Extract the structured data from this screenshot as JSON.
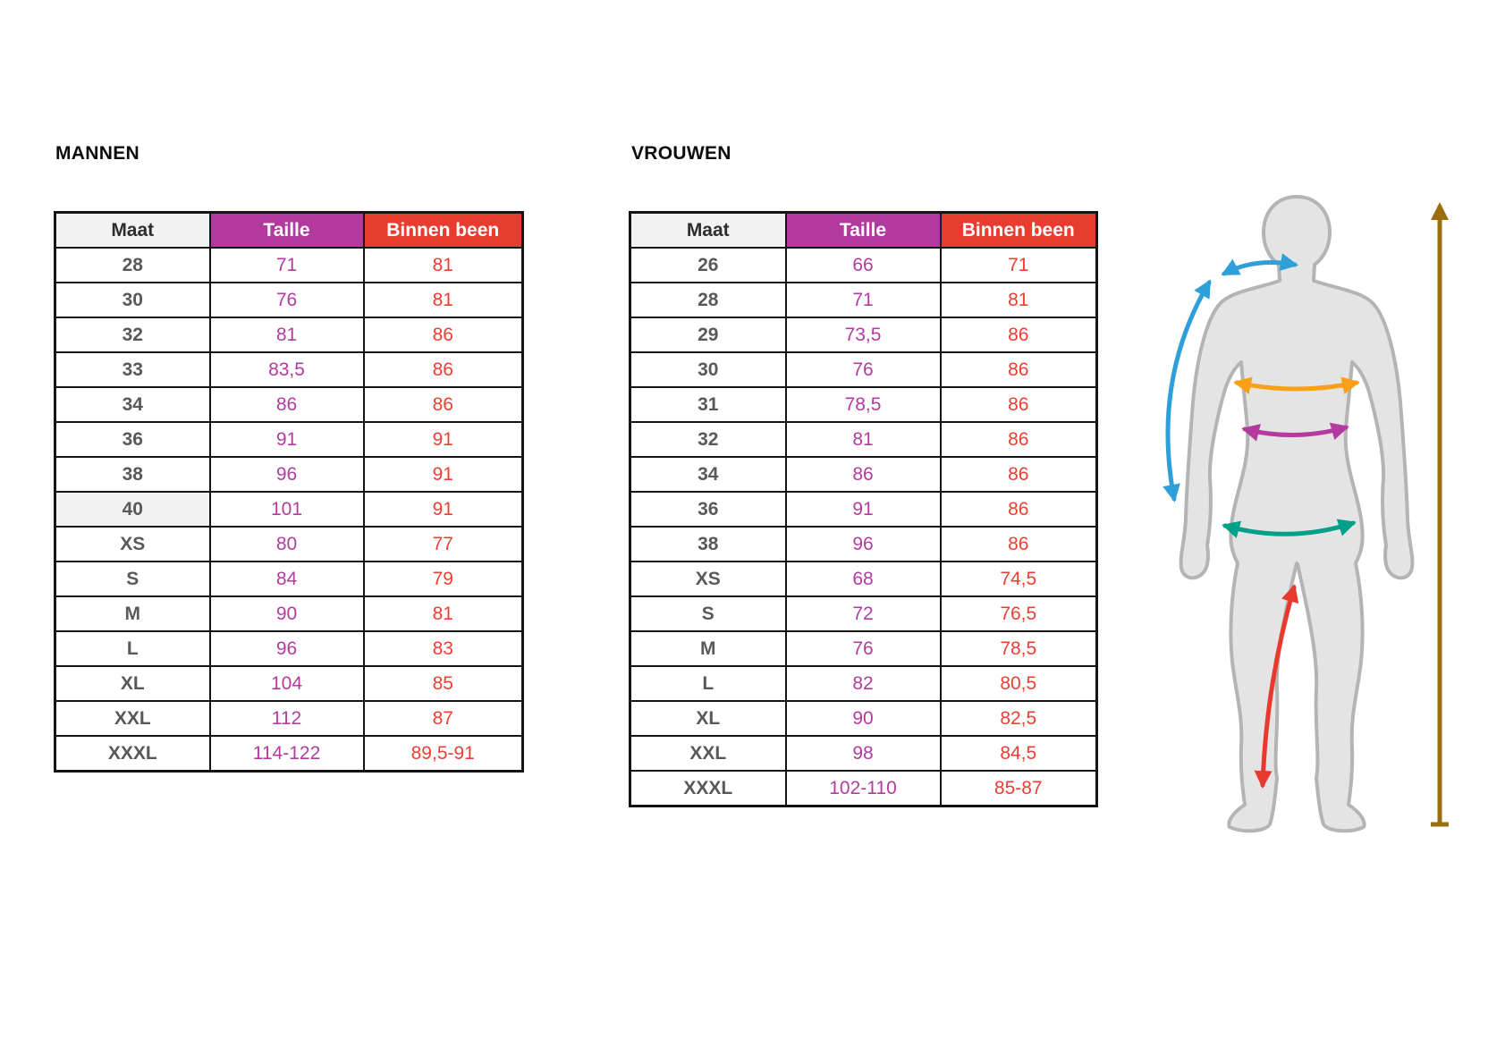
{
  "page": {
    "background": "#ffffff"
  },
  "theme": {
    "border_color": "#141414",
    "highlight_bg": "#f2f2f2"
  },
  "tables": [
    {
      "id": "men",
      "title": "MANNEN",
      "columns": [
        {
          "key": "maat",
          "label": "Maat",
          "header_bg": "#f2f2f2",
          "header_text": "#2d2d2d",
          "cell_color": "#59595b"
        },
        {
          "key": "taille",
          "label": "Taille",
          "header_bg": "#b23a9e",
          "header_text": "#ffffff",
          "cell_color": "#b53aa0"
        },
        {
          "key": "binnen-been",
          "label": "Binnen been",
          "header_bg": "#e93c30",
          "header_text": "#ffffff",
          "cell_color": "#ee3e33"
        }
      ],
      "rows": [
        {
          "cells": [
            "28",
            "71",
            "81"
          ]
        },
        {
          "cells": [
            "30",
            "76",
            "81"
          ]
        },
        {
          "cells": [
            "32",
            "81",
            "86"
          ]
        },
        {
          "cells": [
            "33",
            "83,5",
            "86"
          ]
        },
        {
          "cells": [
            "34",
            "86",
            "86"
          ]
        },
        {
          "cells": [
            "36",
            "91",
            "91"
          ]
        },
        {
          "cells": [
            "38",
            "96",
            "91"
          ]
        },
        {
          "cells": [
            "40",
            "101",
            "91"
          ],
          "highlight_first": true
        },
        {
          "cells": [
            "XS",
            "80",
            "77"
          ]
        },
        {
          "cells": [
            "S",
            "84",
            "79"
          ]
        },
        {
          "cells": [
            "M",
            "90",
            "81"
          ]
        },
        {
          "cells": [
            "L",
            "96",
            "83"
          ]
        },
        {
          "cells": [
            "XL",
            "104",
            "85"
          ]
        },
        {
          "cells": [
            "XXL",
            "112",
            "87"
          ]
        },
        {
          "cells": [
            "XXXL",
            "114-122",
            "89,5-91"
          ]
        }
      ]
    },
    {
      "id": "women",
      "title": "VROUWEN",
      "columns": [
        {
          "key": "maat",
          "label": "Maat",
          "header_bg": "#f2f2f2",
          "header_text": "#2d2d2d",
          "cell_color": "#59595b"
        },
        {
          "key": "taille",
          "label": "Taille",
          "header_bg": "#b23a9e",
          "header_text": "#ffffff",
          "cell_color": "#b53aa0"
        },
        {
          "key": "binnen-been",
          "label": "Binnen been",
          "header_bg": "#e93c30",
          "header_text": "#ffffff",
          "cell_color": "#ee3e33"
        }
      ],
      "rows": [
        {
          "cells": [
            "26",
            "66",
            "71"
          ]
        },
        {
          "cells": [
            "28",
            "71",
            "81"
          ]
        },
        {
          "cells": [
            "29",
            "73,5",
            "86"
          ]
        },
        {
          "cells": [
            "30",
            "76",
            "86"
          ]
        },
        {
          "cells": [
            "31",
            "78,5",
            "86"
          ]
        },
        {
          "cells": [
            "32",
            "81",
            "86"
          ]
        },
        {
          "cells": [
            "34",
            "86",
            "86"
          ]
        },
        {
          "cells": [
            "36",
            "91",
            "86"
          ]
        },
        {
          "cells": [
            "38",
            "96",
            "86"
          ]
        },
        {
          "cells": [
            "XS",
            "68",
            "74,5"
          ]
        },
        {
          "cells": [
            "S",
            "72",
            "76,5"
          ]
        },
        {
          "cells": [
            "M",
            "76",
            "78,5"
          ]
        },
        {
          "cells": [
            "L",
            "82",
            "80,5"
          ]
        },
        {
          "cells": [
            "XL",
            "90",
            "82,5"
          ]
        },
        {
          "cells": [
            "XXL",
            "98",
            "84,5"
          ]
        },
        {
          "cells": [
            "XXXL",
            "102-110",
            "85-87"
          ]
        }
      ]
    }
  ],
  "figure": {
    "silhouette_fill": "#e4e4e4",
    "silhouette_stroke": "#b4b4b4",
    "arrows": [
      {
        "name": "shoulder",
        "color": "#2e9fd8"
      },
      {
        "name": "arm-length",
        "color": "#2e9fd8"
      },
      {
        "name": "chest",
        "color": "#f9a01b"
      },
      {
        "name": "waist",
        "color": "#b5399f"
      },
      {
        "name": "hip",
        "color": "#00a08a"
      },
      {
        "name": "inner-leg",
        "color": "#e8392e"
      },
      {
        "name": "body-height",
        "color": "#9a6d11"
      }
    ]
  }
}
